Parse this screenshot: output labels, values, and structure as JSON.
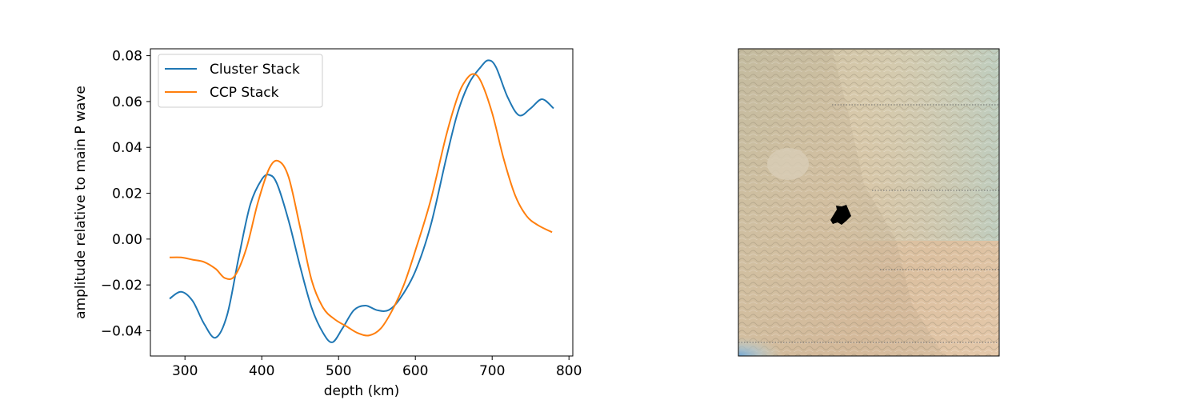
{
  "chart_data": [
    {
      "type": "line",
      "title": "",
      "xlabel": "depth (km)",
      "ylabel": "amplitude relative to main P wave",
      "xlim": [
        255,
        805
      ],
      "ylim": [
        -0.051,
        0.083
      ],
      "xticks": [
        300,
        400,
        500,
        600,
        700,
        800
      ],
      "xtick_labels": [
        "300",
        "400",
        "500",
        "600",
        "700",
        "800"
      ],
      "yticks": [
        -0.04,
        -0.02,
        0.0,
        0.02,
        0.04,
        0.06,
        0.08
      ],
      "ytick_labels": [
        "−0.04",
        "−0.02",
        "0.00",
        "0.02",
        "0.04",
        "0.06",
        "0.08"
      ],
      "grid": false,
      "legend_position": "top-left",
      "series": [
        {
          "name": "Cluster Stack",
          "color": "#1f77b4",
          "x": [
            280,
            295,
            310,
            325,
            340,
            355,
            370,
            385,
            400,
            410,
            420,
            435,
            450,
            465,
            480,
            492,
            505,
            520,
            535,
            550,
            565,
            580,
            600,
            620,
            640,
            655,
            670,
            685,
            695,
            705,
            720,
            735,
            750,
            765,
            780
          ],
          "y": [
            -0.026,
            -0.023,
            -0.027,
            -0.037,
            -0.043,
            -0.033,
            -0.008,
            0.015,
            0.026,
            0.028,
            0.024,
            0.008,
            -0.012,
            -0.03,
            -0.041,
            -0.045,
            -0.039,
            -0.031,
            -0.029,
            -0.031,
            -0.031,
            -0.026,
            -0.014,
            0.006,
            0.035,
            0.055,
            0.068,
            0.075,
            0.078,
            0.075,
            0.062,
            0.054,
            0.057,
            0.061,
            0.057
          ]
        },
        {
          "name": "CCP Stack",
          "color": "#ff7f0e",
          "x": [
            280,
            295,
            310,
            325,
            340,
            352,
            365,
            380,
            395,
            410,
            422,
            435,
            450,
            465,
            480,
            495,
            510,
            525,
            540,
            555,
            570,
            585,
            600,
            620,
            640,
            655,
            665,
            675,
            685,
            700,
            715,
            730,
            745,
            760,
            778
          ],
          "y": [
            -0.008,
            -0.008,
            -0.009,
            -0.01,
            -0.013,
            -0.017,
            -0.016,
            -0.004,
            0.016,
            0.031,
            0.034,
            0.027,
            0.005,
            -0.018,
            -0.03,
            -0.035,
            -0.038,
            -0.041,
            -0.042,
            -0.039,
            -0.031,
            -0.02,
            -0.005,
            0.017,
            0.045,
            0.062,
            0.069,
            0.072,
            0.069,
            0.055,
            0.035,
            0.019,
            0.01,
            0.006,
            0.003
          ]
        }
      ]
    }
  ]
}
